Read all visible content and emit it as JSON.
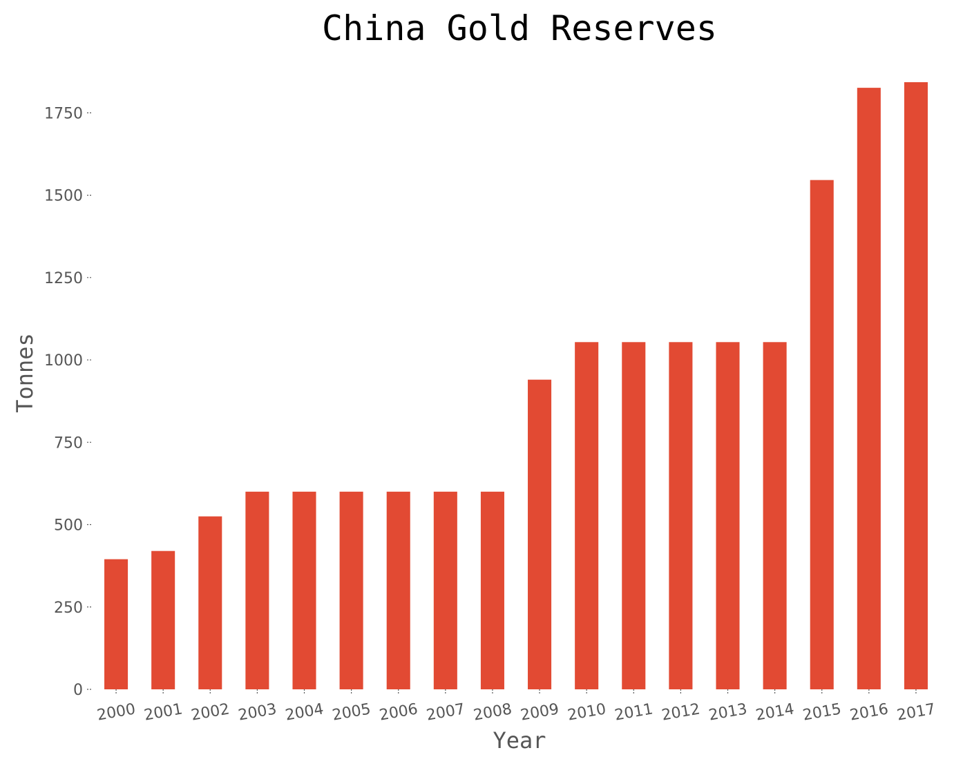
{
  "chart_data": {
    "type": "bar",
    "title": "China Gold Reserves",
    "xlabel": "Year",
    "ylabel": "Tonnes",
    "categories": [
      "2000",
      "2001",
      "2002",
      "2003",
      "2004",
      "2005",
      "2006",
      "2007",
      "2008",
      "2009",
      "2010",
      "2011",
      "2012",
      "2013",
      "2014",
      "2015",
      "2016",
      "2017"
    ],
    "values": [
      395,
      420,
      525,
      600,
      600,
      600,
      600,
      600,
      600,
      940,
      1054,
      1054,
      1054,
      1054,
      1054,
      1546,
      1826,
      1843
    ],
    "ylim": [
      0,
      1843
    ],
    "yticks": [
      0,
      250,
      500,
      750,
      1000,
      1250,
      1500,
      1750
    ],
    "bar_color": "#e24a33",
    "grid": false,
    "legend": false
  }
}
